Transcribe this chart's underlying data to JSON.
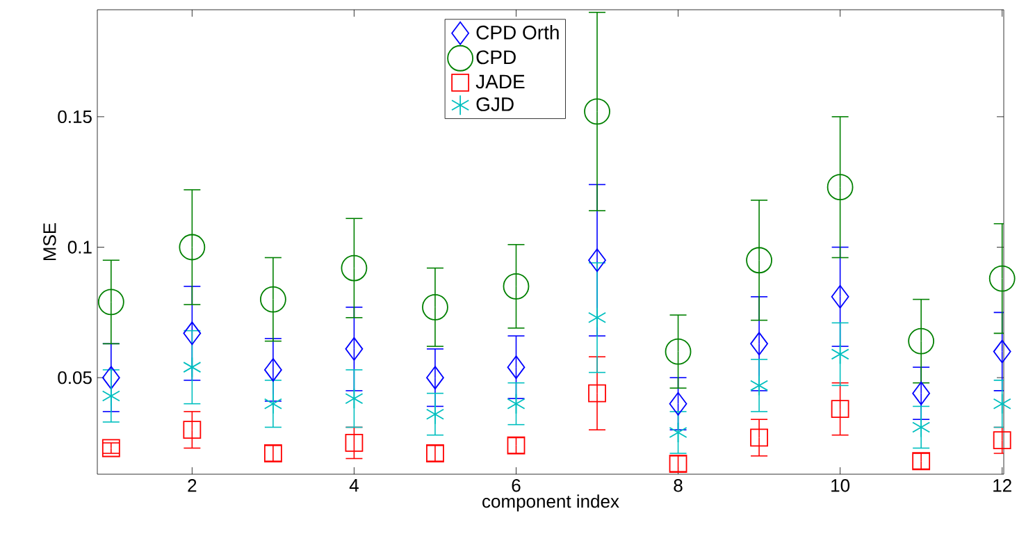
{
  "chart_data": {
    "type": "scatter",
    "xlabel": "component index",
    "ylabel": "MSE",
    "legend": "top",
    "grid": false,
    "x": [
      1,
      2,
      3,
      4,
      5,
      6,
      7,
      8,
      9,
      10,
      11,
      12
    ],
    "xlim": [
      0.83,
      12.02
    ],
    "ylim": [
      0.013,
      0.191
    ],
    "xticks": [
      2,
      4,
      6,
      8,
      10,
      12
    ],
    "yticks": [
      0.05,
      0.1,
      0.15
    ],
    "series": [
      {
        "name": "CPD Orth",
        "color": "#0000ff",
        "marker": "diamond",
        "values": [
          0.05,
          0.067,
          0.053,
          0.061,
          0.05,
          0.054,
          0.095,
          0.04,
          0.063,
          0.081,
          0.044,
          0.06
        ],
        "errors": [
          0.013,
          0.018,
          0.012,
          0.016,
          0.011,
          0.012,
          0.029,
          0.01,
          0.018,
          0.019,
          0.01,
          0.015
        ]
      },
      {
        "name": "CPD",
        "color": "#008000",
        "marker": "circle",
        "values": [
          0.079,
          0.1,
          0.08,
          0.092,
          0.077,
          0.085,
          0.152,
          0.06,
          0.095,
          0.123,
          0.064,
          0.088
        ],
        "errors": [
          0.016,
          0.022,
          0.016,
          0.019,
          0.015,
          0.016,
          0.038,
          0.014,
          0.023,
          0.027,
          0.016,
          0.021
        ]
      },
      {
        "name": "JADE",
        "color": "#ff0000",
        "marker": "square",
        "values": [
          0.023,
          0.03,
          0.021,
          0.025,
          0.021,
          0.024,
          0.044,
          0.017,
          0.027,
          0.038,
          0.018,
          0.026
        ],
        "errors": [
          0.002,
          0.007,
          0.003,
          0.006,
          0.003,
          0.003,
          0.014,
          0.003,
          0.007,
          0.01,
          0.003,
          0.005
        ]
      },
      {
        "name": "GJD",
        "color": "#00bfbf",
        "marker": "cross",
        "values": [
          0.043,
          0.054,
          0.04,
          0.042,
          0.036,
          0.04,
          0.073,
          0.029,
          0.047,
          0.059,
          0.031,
          0.04
        ],
        "errors": [
          0.01,
          0.014,
          0.009,
          0.011,
          0.008,
          0.008,
          0.021,
          0.008,
          0.01,
          0.012,
          0.008,
          0.009
        ]
      }
    ]
  }
}
